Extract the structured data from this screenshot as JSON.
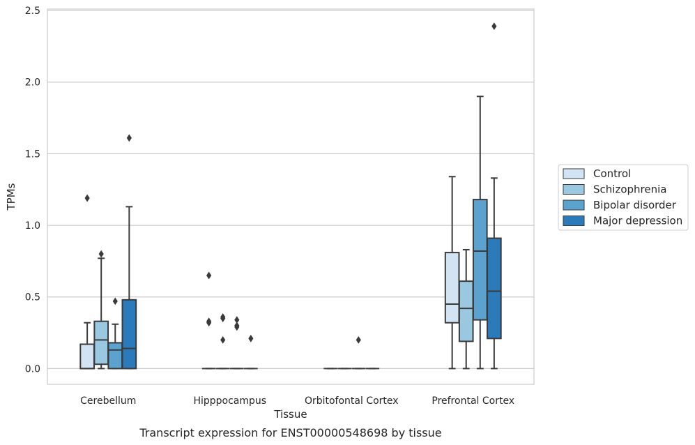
{
  "caption": "Transcript expression for ENST00000548698 by tissue",
  "chart_data": {
    "type": "boxplot",
    "title": "",
    "xlabel": "Tissue",
    "ylabel": "TPMs",
    "ylim": [
      -0.11,
      2.51
    ],
    "yticks": [
      0.0,
      0.5,
      1.0,
      1.5,
      2.0,
      2.5
    ],
    "ytick_labels": [
      "0.0",
      "0.5",
      "1.0",
      "1.5",
      "2.0",
      "2.5"
    ],
    "grid": "horizontal",
    "legend_position": "outside-right",
    "categories": [
      "Cerebellum",
      "Hipppocampus",
      "Orbitofontal Cortex",
      "Prefrontal Cortex"
    ],
    "series": [
      {
        "name": "Control",
        "color": "#d2e3f3",
        "boxes": [
          {
            "whislo": 0.0,
            "q1": 0.0,
            "med": 0.0,
            "q3": 0.17,
            "whishi": 0.32,
            "fliers": [
              1.19
            ]
          },
          {
            "whislo": 0.0,
            "q1": 0.0,
            "med": 0.0,
            "q3": 0.0,
            "whishi": 0.0,
            "fliers": [
              0.65,
              0.32,
              0.33
            ]
          },
          {
            "whislo": 0.0,
            "q1": 0.0,
            "med": 0.0,
            "q3": 0.0,
            "whishi": 0.0,
            "fliers": []
          },
          {
            "whislo": 0.0,
            "q1": 0.32,
            "med": 0.45,
            "q3": 0.81,
            "whishi": 1.34,
            "fliers": []
          }
        ]
      },
      {
        "name": "Schizophrenia",
        "color": "#9ac8e0",
        "boxes": [
          {
            "whislo": 0.0,
            "q1": 0.03,
            "med": 0.2,
            "q3": 0.33,
            "whishi": 0.77,
            "fliers": [
              0.8
            ]
          },
          {
            "whislo": 0.0,
            "q1": 0.0,
            "med": 0.0,
            "q3": 0.0,
            "whishi": 0.0,
            "fliers": [
              0.35,
              0.36,
              0.2
            ]
          },
          {
            "whislo": 0.0,
            "q1": 0.0,
            "med": 0.0,
            "q3": 0.0,
            "whishi": 0.0,
            "fliers": []
          },
          {
            "whislo": 0.0,
            "q1": 0.19,
            "med": 0.42,
            "q3": 0.61,
            "whishi": 0.83,
            "fliers": []
          }
        ]
      },
      {
        "name": "Bipolar disorder",
        "color": "#5ba2cf",
        "boxes": [
          {
            "whislo": 0.0,
            "q1": 0.0,
            "med": 0.13,
            "q3": 0.18,
            "whishi": 0.31,
            "fliers": [
              0.47
            ]
          },
          {
            "whislo": 0.0,
            "q1": 0.0,
            "med": 0.0,
            "q3": 0.0,
            "whishi": 0.0,
            "fliers": [
              0.34,
              0.3,
              0.29
            ]
          },
          {
            "whislo": 0.0,
            "q1": 0.0,
            "med": 0.0,
            "q3": 0.0,
            "whishi": 0.0,
            "fliers": [
              0.2
            ]
          },
          {
            "whislo": 0.0,
            "q1": 0.34,
            "med": 0.82,
            "q3": 1.18,
            "whishi": 1.9,
            "fliers": []
          }
        ]
      },
      {
        "name": "Major depression",
        "color": "#2b7ab9",
        "boxes": [
          {
            "whislo": 0.0,
            "q1": 0.0,
            "med": 0.14,
            "q3": 0.48,
            "whishi": 1.13,
            "fliers": [
              1.61
            ]
          },
          {
            "whislo": 0.0,
            "q1": 0.0,
            "med": 0.0,
            "q3": 0.0,
            "whishi": 0.0,
            "fliers": [
              0.21
            ]
          },
          {
            "whislo": 0.0,
            "q1": 0.0,
            "med": 0.0,
            "q3": 0.0,
            "whishi": 0.0,
            "fliers": []
          },
          {
            "whislo": 0.0,
            "q1": 0.21,
            "med": 0.54,
            "q3": 0.91,
            "whishi": 1.33,
            "fliers": [
              2.39
            ]
          }
        ]
      }
    ]
  }
}
